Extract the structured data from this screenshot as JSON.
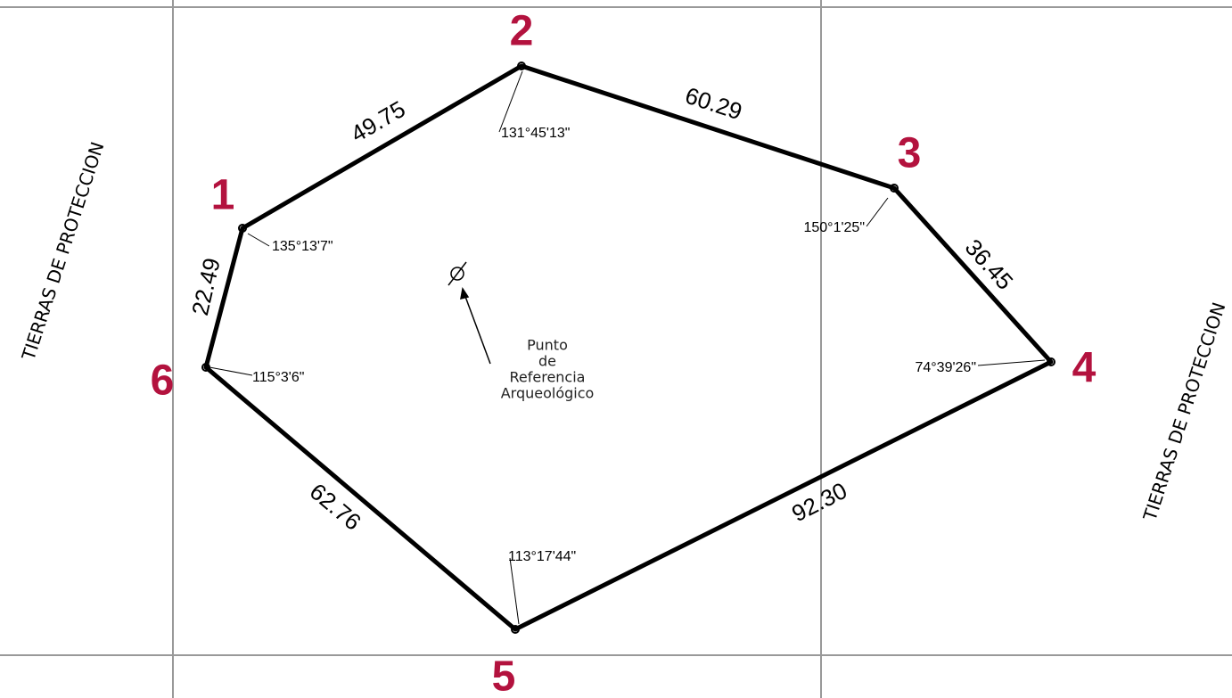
{
  "vertices": [
    {
      "label": "1",
      "angle": "135°13'7\""
    },
    {
      "label": "2",
      "angle": "131°45'13\""
    },
    {
      "label": "3",
      "angle": "150°1'25\""
    },
    {
      "label": "4",
      "angle": "74°39'26\""
    },
    {
      "label": "5",
      "angle": "113°17'44\""
    },
    {
      "label": "6",
      "angle": "115°3'6\""
    }
  ],
  "edges": [
    {
      "length": "49.75"
    },
    {
      "length": "60.29"
    },
    {
      "length": "36.45"
    },
    {
      "length": "92.30"
    },
    {
      "length": "62.76"
    },
    {
      "length": "22.49"
    }
  ],
  "side_labels": [
    "TIERRAS DE PROTECCION",
    "TIERRAS DE PROTECCION"
  ],
  "reference_point": {
    "lines": [
      "Punto",
      "de",
      "Referencia",
      "Arqueológico"
    ]
  }
}
